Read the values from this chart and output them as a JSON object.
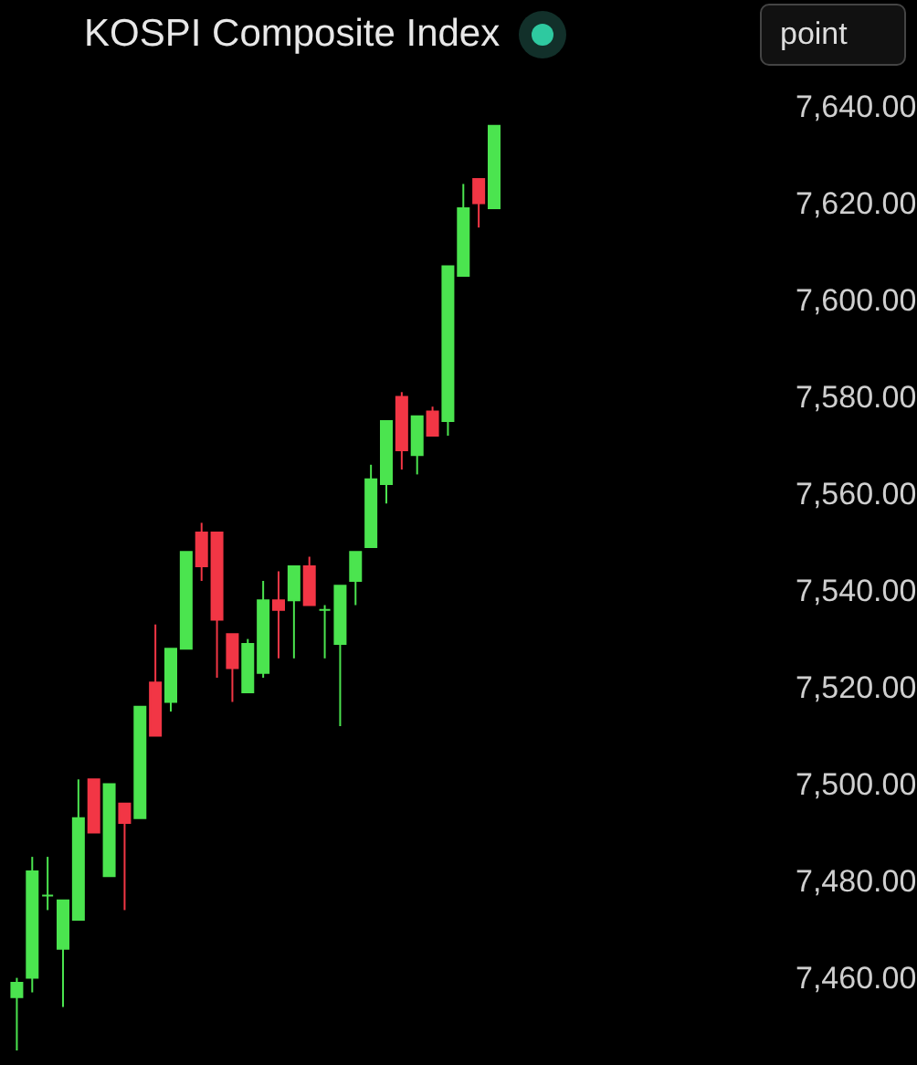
{
  "chart_data": {
    "type": "candlestick",
    "title": "KOSPI Composite Index",
    "annotations": [
      "point"
    ],
    "categories": [
      null,
      null,
      null,
      null,
      null,
      null,
      null,
      null,
      null,
      null,
      null,
      null,
      null,
      null,
      null,
      null,
      null,
      null,
      null,
      null,
      null,
      null,
      null,
      null,
      null,
      null,
      null,
      null,
      null,
      null,
      null,
      null,
      null,
      null,
      null,
      null,
      null,
      null,
      null,
      null,
      null,
      null,
      null,
      null,
      null,
      null,
      null,
      null,
      null
    ],
    "ohlc": [
      [
        7456,
        7460,
        7445,
        7459
      ],
      [
        7460,
        7485,
        7457,
        7482
      ],
      [
        7477,
        7485,
        7474,
        7477
      ],
      [
        7466,
        7476,
        7454,
        7476
      ],
      [
        7472,
        7501,
        7472,
        7493
      ],
      [
        7501,
        7501,
        7490,
        7490
      ],
      [
        7481,
        7500,
        7481,
        7500
      ],
      [
        7496,
        7496,
        7474,
        7492
      ],
      [
        7493,
        7516,
        7493,
        7516
      ],
      [
        7521,
        7533,
        7510,
        7510
      ],
      [
        7517,
        7528,
        7515,
        7528
      ],
      [
        7528,
        7548,
        7528,
        7548
      ],
      [
        7552,
        7554,
        7542,
        7545
      ],
      [
        7552,
        7552,
        7522,
        7534
      ],
      [
        7531,
        7531,
        7517,
        7524
      ],
      [
        7519,
        7530,
        7519,
        7529
      ],
      [
        7523,
        7542,
        7522,
        7538
      ],
      [
        7538,
        7544,
        7526,
        7536
      ],
      [
        7538,
        7545,
        7526,
        7545
      ],
      [
        7545,
        7547,
        7537,
        7537
      ],
      [
        7536,
        7537,
        7526,
        7536
      ],
      [
        7529,
        7541,
        7512,
        7541
      ],
      [
        7542,
        7548,
        7537,
        7548
      ],
      [
        7549,
        7566,
        7549,
        7563
      ],
      [
        7562,
        7575,
        7558,
        7575
      ],
      [
        7580,
        7581,
        7565,
        7569
      ],
      [
        7568,
        7576,
        7564,
        7576
      ],
      [
        7577,
        7578,
        7572,
        7572
      ],
      [
        7575,
        7607,
        7572,
        7607
      ],
      [
        7605,
        7624,
        7605,
        7619
      ],
      [
        7625,
        7625,
        7615,
        7620
      ],
      [
        7619,
        7636,
        7619,
        7636
      ],
      null,
      null,
      null,
      null,
      null,
      null,
      null,
      null,
      null,
      null,
      null,
      null,
      null,
      null,
      null,
      null,
      null
    ],
    "colors": [
      "#4be44f",
      "#4be44f",
      "#4be44f",
      "#4be44f",
      "#4be44f",
      "#f23645",
      "#4be44f",
      "#f23645",
      "#4be44f",
      "#f23645",
      "#4be44f",
      "#4be44f",
      "#f23645",
      "#f23645",
      "#f23645",
      "#4be44f",
      "#4be44f",
      "#f23645",
      "#4be44f",
      "#f23645",
      "#4be44f",
      "#4be44f",
      "#4be44f",
      "#4be44f",
      "#4be44f",
      "#f23645",
      "#4be44f",
      "#f23645",
      "#4be44f",
      "#4be44f",
      "#f23645",
      "#4be44f",
      null,
      null,
      null,
      null,
      null,
      null,
      null,
      null,
      null,
      null,
      null,
      null,
      null,
      null,
      null,
      null,
      null
    ],
    "ylim": [
      7442,
      7662
    ],
    "yticks": [
      {
        "value": 7460,
        "label": "7,460.00"
      },
      {
        "value": 7480,
        "label": "7,480.00"
      },
      {
        "value": 7500,
        "label": "7,500.00"
      },
      {
        "value": 7520,
        "label": "7,520.00"
      },
      {
        "value": 7540,
        "label": "7,540.00"
      },
      {
        "value": 7560,
        "label": "7,560.00"
      },
      {
        "value": 7580,
        "label": "7,580.00"
      },
      {
        "value": 7600,
        "label": "7,600.00"
      },
      {
        "value": 7620,
        "label": "7,620.00"
      },
      {
        "value": 7640,
        "label": "7,640.00"
      }
    ]
  }
}
